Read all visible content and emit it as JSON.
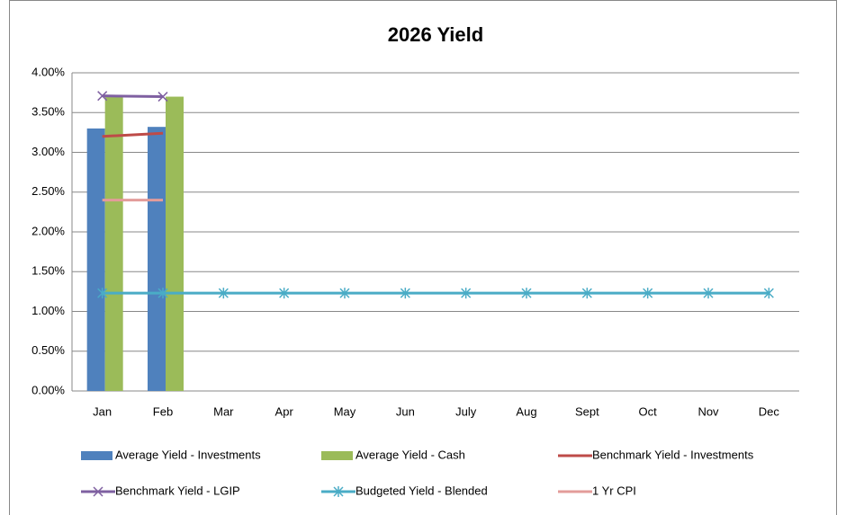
{
  "chart_data": {
    "type": "combo",
    "title": "2026 Yield",
    "categories": [
      "Jan",
      "Feb",
      "Mar",
      "Apr",
      "May",
      "Jun",
      "July",
      "Aug",
      "Sept",
      "Oct",
      "Nov",
      "Dec"
    ],
    "ylim": [
      0,
      4
    ],
    "yticks": [
      {
        "value": 0,
        "label": "0.00%"
      },
      {
        "value": 0.5,
        "label": "0.50%"
      },
      {
        "value": 1,
        "label": "1.00%"
      },
      {
        "value": 1.5,
        "label": "1.50%"
      },
      {
        "value": 2,
        "label": "2.00%"
      },
      {
        "value": 2.5,
        "label": "2.50%"
      },
      {
        "value": 3,
        "label": "3.00%"
      },
      {
        "value": 3.5,
        "label": "3.50%"
      },
      {
        "value": 4,
        "label": "4.00%"
      }
    ],
    "grid": true,
    "legend": "bottom",
    "series": [
      {
        "name": "Average Yield - Investments",
        "type": "bar",
        "color": "#4f81bd",
        "values": [
          3.3,
          3.32,
          null,
          null,
          null,
          null,
          null,
          null,
          null,
          null,
          null,
          null
        ]
      },
      {
        "name": "Average Yield - Cash",
        "type": "bar",
        "color": "#9bbb59",
        "values": [
          3.7,
          3.7,
          null,
          null,
          null,
          null,
          null,
          null,
          null,
          null,
          null,
          null
        ]
      },
      {
        "name": "Benchmark Yield - Investments",
        "type": "line",
        "color": "#be4b48",
        "values": [
          3.2,
          3.24,
          null,
          null,
          null,
          null,
          null,
          null,
          null,
          null,
          null,
          null
        ]
      },
      {
        "name": "Benchmark Yield - LGIP",
        "type": "line",
        "color": "#7f60a1",
        "marker": "x",
        "values": [
          3.71,
          3.7,
          null,
          null,
          null,
          null,
          null,
          null,
          null,
          null,
          null,
          null
        ]
      },
      {
        "name": "Budgeted Yield - Blended",
        "type": "line",
        "color": "#4aacc6",
        "marker": "star",
        "values": [
          1.23,
          1.23,
          1.23,
          1.23,
          1.23,
          1.23,
          1.23,
          1.23,
          1.23,
          1.23,
          1.23,
          1.23
        ]
      },
      {
        "name": "1 Yr CPI",
        "type": "line",
        "color": "#e39c9a",
        "values": [
          2.4,
          2.4,
          null,
          null,
          null,
          null,
          null,
          null,
          null,
          null,
          null,
          null
        ]
      }
    ]
  }
}
